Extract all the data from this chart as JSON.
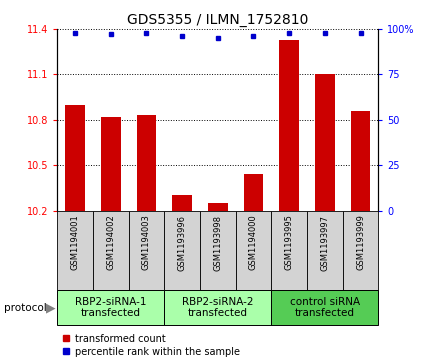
{
  "title": "GDS5355 / ILMN_1752810",
  "samples": [
    "GSM1194001",
    "GSM1194002",
    "GSM1194003",
    "GSM1193996",
    "GSM1193998",
    "GSM1194000",
    "GSM1193995",
    "GSM1193997",
    "GSM1193999"
  ],
  "red_values": [
    10.9,
    10.82,
    10.83,
    10.3,
    10.25,
    10.44,
    11.33,
    11.1,
    10.86
  ],
  "blue_values": [
    98,
    97,
    98,
    96,
    95,
    96,
    98,
    98,
    98
  ],
  "ylim_left": [
    10.2,
    11.4
  ],
  "ylim_right": [
    0,
    100
  ],
  "yticks_left": [
    10.2,
    10.5,
    10.8,
    11.1,
    11.4
  ],
  "yticks_right": [
    0,
    25,
    50,
    75,
    100
  ],
  "bar_color": "#CC0000",
  "dot_color": "#0000CC",
  "sample_bg": "#D3D3D3",
  "group_colors": [
    "#AAFFAA",
    "#AAFFAA",
    "#55CC55"
  ],
  "group_labels": [
    "RBP2-siRNA-1\ntransfected",
    "RBP2-siRNA-2\ntransfected",
    "control siRNA\ntransfected"
  ],
  "group_ranges": [
    [
      0,
      3
    ],
    [
      3,
      6
    ],
    [
      6,
      9
    ]
  ],
  "protocol_label": "protocol",
  "legend_red": "transformed count",
  "legend_blue": "percentile rank within the sample",
  "title_fontsize": 10,
  "tick_fontsize": 7,
  "sample_fontsize": 6,
  "group_fontsize": 7.5
}
